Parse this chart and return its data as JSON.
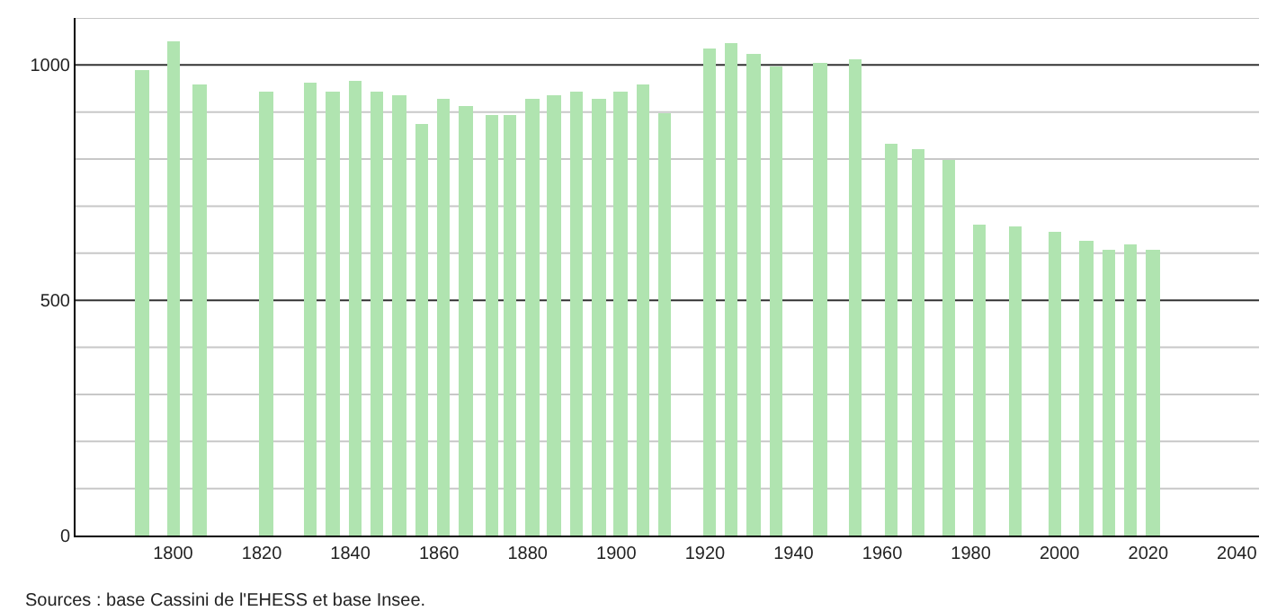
{
  "chart_data": {
    "type": "bar",
    "x": [
      1793,
      1800,
      1806,
      1821,
      1831,
      1836,
      1841,
      1846,
      1851,
      1856,
      1861,
      1866,
      1872,
      1876,
      1881,
      1886,
      1891,
      1896,
      1901,
      1906,
      1911,
      1921,
      1926,
      1931,
      1936,
      1946,
      1954,
      1962,
      1968,
      1975,
      1982,
      1990,
      1999,
      2006,
      2011,
      2016,
      2021
    ],
    "values": [
      990,
      1050,
      960,
      944,
      962,
      944,
      965,
      944,
      934,
      876,
      929,
      911,
      892,
      892,
      930,
      937,
      944,
      929,
      944,
      960,
      899,
      1035,
      1048,
      1025,
      997,
      1006,
      1013,
      832,
      823,
      797,
      661,
      656,
      646,
      625,
      608,
      618,
      608
    ],
    "color": "#b0e4b0",
    "xlim": [
      1778,
      2045
    ],
    "xticks": [
      1800,
      1820,
      1840,
      1860,
      1880,
      1900,
      1920,
      1940,
      1960,
      1980,
      2000,
      2020,
      2040
    ],
    "ylim": [
      0,
      1100
    ],
    "yticks": [
      0,
      {
        "value": 100,
        "label": null
      },
      {
        "value": 200,
        "label": null
      },
      {
        "value": 300,
        "label": null
      },
      {
        "value": 400,
        "label": null
      },
      500,
      {
        "value": 600,
        "label": null
      },
      {
        "value": 700,
        "label": null
      },
      {
        "value": 800,
        "label": null
      },
      {
        "value": 900,
        "label": null
      },
      1000,
      {
        "value": 1100,
        "label": null
      }
    ],
    "grid": "y",
    "annotations": [
      "Sources : base Cassini de l'EHESS et base Insee."
    ]
  }
}
